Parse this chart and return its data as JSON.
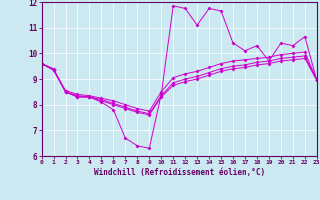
{
  "bg_color": "#cce8f0",
  "line_color": "#cc00cc",
  "spine_color": "#660066",
  "grid_color": "#ffffff",
  "ylim": [
    6,
    12
  ],
  "xlim": [
    0,
    23
  ],
  "yticks": [
    6,
    7,
    8,
    9,
    10,
    11,
    12
  ],
  "xticks": [
    0,
    1,
    2,
    3,
    4,
    5,
    6,
    7,
    8,
    9,
    10,
    11,
    12,
    13,
    14,
    15,
    16,
    17,
    18,
    19,
    20,
    21,
    22,
    23
  ],
  "xlabel": "Windchill (Refroidissement éolien,°C)",
  "line1_x": [
    0,
    1,
    2,
    3,
    4,
    5,
    6,
    7,
    8,
    9,
    10,
    11,
    12,
    13,
    14,
    15,
    16,
    17,
    18,
    19,
    20,
    21,
    22,
    23
  ],
  "line1_y": [
    9.6,
    9.4,
    8.5,
    8.3,
    8.3,
    8.1,
    7.8,
    6.7,
    6.4,
    6.3,
    8.4,
    11.85,
    11.75,
    11.1,
    11.75,
    11.65,
    10.4,
    10.1,
    10.3,
    9.7,
    10.4,
    10.3,
    10.65,
    8.95
  ],
  "line2_x": [
    0,
    1,
    2,
    3,
    4,
    5,
    6,
    7,
    8,
    9,
    10,
    11,
    12,
    13,
    14,
    15,
    16,
    17,
    18,
    19,
    20,
    21,
    22,
    23
  ],
  "line2_y": [
    9.6,
    9.35,
    8.5,
    8.35,
    8.3,
    8.2,
    8.05,
    7.9,
    7.75,
    7.65,
    8.35,
    8.85,
    9.0,
    9.1,
    9.25,
    9.4,
    9.5,
    9.55,
    9.65,
    9.7,
    9.8,
    9.85,
    9.9,
    8.95
  ],
  "line3_x": [
    0,
    1,
    2,
    3,
    4,
    5,
    6,
    7,
    8,
    9,
    10,
    11,
    12,
    13,
    14,
    15,
    16,
    17,
    18,
    19,
    20,
    21,
    22,
    23
  ],
  "line3_y": [
    9.6,
    9.35,
    8.55,
    8.4,
    8.35,
    8.25,
    8.15,
    8.0,
    7.85,
    7.75,
    8.5,
    9.05,
    9.2,
    9.3,
    9.45,
    9.6,
    9.7,
    9.75,
    9.8,
    9.85,
    9.95,
    10.0,
    10.05,
    8.95
  ],
  "line4_x": [
    0,
    1,
    2,
    3,
    4,
    5,
    6,
    7,
    8,
    9,
    10,
    11,
    12,
    13,
    14,
    15,
    16,
    17,
    18,
    19,
    20,
    21,
    22,
    23
  ],
  "line4_y": [
    9.6,
    9.35,
    8.5,
    8.3,
    8.3,
    8.15,
    8.0,
    7.85,
    7.7,
    7.6,
    8.3,
    8.75,
    8.9,
    9.0,
    9.15,
    9.3,
    9.4,
    9.45,
    9.55,
    9.6,
    9.7,
    9.75,
    9.8,
    8.95
  ]
}
